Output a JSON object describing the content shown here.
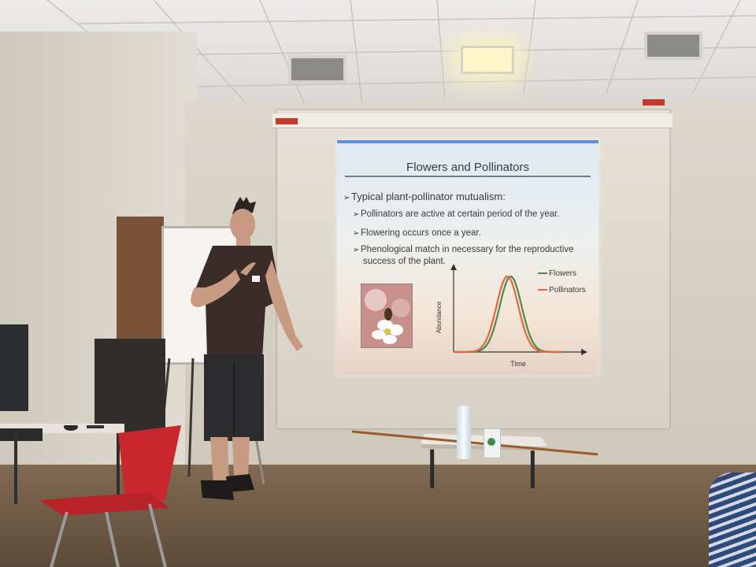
{
  "slide": {
    "title": "Flowers and Pollinators",
    "bullet_main": "Typical plant-pollinator mutualism:",
    "bullet_1": "Pollinators are active at certain period of the year.",
    "bullet_2": "Flowering occurs once a year.",
    "bullet_3_line1": "Phenological match in necessary for the reproductive",
    "bullet_3_line2": "success of the plant."
  },
  "chart_data": {
    "type": "line",
    "xlabel": "Time",
    "ylabel": "Abundance",
    "legend_placement": "top-right",
    "series": [
      {
        "name": "Flowers",
        "color": "#4c8a4c",
        "peak_x": 0.52,
        "peak_y": 1.0,
        "width": 0.1
      },
      {
        "name": "Pollinators",
        "color": "#e2683a",
        "peak_x": 0.49,
        "peak_y": 1.0,
        "width": 0.1
      }
    ],
    "grid": false
  },
  "colors": {
    "flowers": "#4c8a4c",
    "pollinators": "#e2683a",
    "accent": "#5b8fd6"
  }
}
